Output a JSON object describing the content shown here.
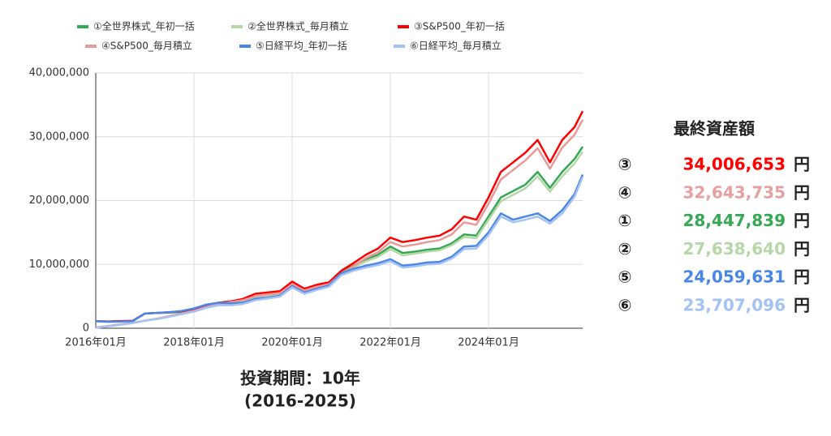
{
  "chart_data": {
    "type": "line",
    "x": [
      "2016-01",
      "2016-04",
      "2016-07",
      "2016-10",
      "2017-01",
      "2017-04",
      "2017-07",
      "2017-10",
      "2018-01",
      "2018-04",
      "2018-07",
      "2018-10",
      "2019-01",
      "2019-04",
      "2019-07",
      "2019-10",
      "2020-01",
      "2020-04",
      "2020-07",
      "2020-10",
      "2021-01",
      "2021-04",
      "2021-07",
      "2021-10",
      "2022-01",
      "2022-04",
      "2022-07",
      "2022-10",
      "2023-01",
      "2023-04",
      "2023-07",
      "2023-10",
      "2024-01",
      "2024-04",
      "2024-07",
      "2024-10",
      "2025-01",
      "2025-04",
      "2025-07",
      "2025-10",
      "2025-12"
    ],
    "xlim": [
      "2016-01",
      "2025-12"
    ],
    "xticks": [
      {
        "value": "2016-01",
        "label": "2016年01月"
      },
      {
        "value": "2018-01",
        "label": "2018年01月"
      },
      {
        "value": "2020-01",
        "label": "2020年01月"
      },
      {
        "value": "2022-01",
        "label": "2022年01月"
      },
      {
        "value": "2024-01",
        "label": "2024年01月"
      }
    ],
    "ylim": [
      0,
      40000000
    ],
    "yticks": [
      0,
      {
        "value": 10000000,
        "label": "10,000,000"
      },
      {
        "value": 20000000,
        "label": "20,000,000"
      },
      {
        "value": 30000000,
        "label": "30,000,000"
      },
      {
        "value": 40000000,
        "label": "40,000,000"
      }
    ],
    "grid": true,
    "x_label": [
      "投資期間：10年",
      "(2016-2025)"
    ],
    "series": [
      {
        "name": "①全世界株式_年初一括",
        "color": "#34a853",
        "values": [
          1100000,
          1050000,
          1100000,
          1150000,
          2300000,
          2400000,
          2450000,
          2550000,
          2950000,
          3500000,
          3900000,
          4000000,
          4300000,
          4900000,
          5100000,
          5300000,
          6800000,
          5800000,
          6400000,
          6800000,
          8800000,
          9800000,
          10800000,
          11500000,
          12800000,
          11800000,
          12000000,
          12300000,
          12500000,
          13300000,
          14700000,
          14500000,
          17500000,
          20500000,
          21500000,
          22500000,
          24500000,
          22000000,
          24500000,
          26500000,
          28447839
        ]
      },
      {
        "name": "②全世界株式_毎月積立",
        "color": "#b6d7a8",
        "values": [
          100000,
          350000,
          600000,
          850000,
          1200000,
          1500000,
          1850000,
          2250000,
          2650000,
          3200000,
          3700000,
          3950000,
          4200000,
          4700000,
          5000000,
          5200000,
          6600000,
          5700000,
          6300000,
          6700000,
          8500000,
          9500000,
          10500000,
          11200000,
          12400000,
          11400000,
          11700000,
          12000000,
          12200000,
          13000000,
          14300000,
          14100000,
          17000000,
          19900000,
          20900000,
          21900000,
          23800000,
          21400000,
          23800000,
          25800000,
          27638640
        ]
      },
      {
        "name": "③S&P500_年初一括",
        "color": "#ff0000",
        "values": [
          1100000,
          1050000,
          1100000,
          1150000,
          2300000,
          2400000,
          2500000,
          2650000,
          3000000,
          3600000,
          4000000,
          4200000,
          4600000,
          5400000,
          5600000,
          5800000,
          7300000,
          6200000,
          6800000,
          7200000,
          9000000,
          10200000,
          11500000,
          12500000,
          14200000,
          13500000,
          13800000,
          14200000,
          14500000,
          15500000,
          17500000,
          17000000,
          20500000,
          24500000,
          26000000,
          27500000,
          29500000,
          26000000,
          29500000,
          31500000,
          34006653
        ]
      },
      {
        "name": "④S&P500_毎月積立",
        "color": "#ea9999",
        "values": [
          100000,
          350000,
          600000,
          850000,
          1200000,
          1500000,
          1900000,
          2300000,
          2700000,
          3300000,
          3800000,
          4100000,
          4400000,
          5000000,
          5300000,
          5500000,
          6900000,
          5900000,
          6500000,
          6900000,
          8600000,
          9700000,
          11000000,
          11900000,
          13500000,
          12800000,
          13100000,
          13500000,
          13800000,
          14700000,
          16600000,
          16200000,
          19500000,
          23300000,
          24800000,
          26300000,
          28200000,
          25000000,
          28300000,
          30300000,
          32643735
        ]
      },
      {
        "name": "⑤日経平均_年初一括",
        "color": "#4a86e8",
        "values": [
          1100000,
          1000000,
          1050000,
          1100000,
          2300000,
          2400000,
          2500000,
          2700000,
          3100000,
          3700000,
          4000000,
          3900000,
          4000000,
          4600000,
          4800000,
          5100000,
          6600000,
          5600000,
          6200000,
          6700000,
          8600000,
          9300000,
          9800000,
          10200000,
          10800000,
          9800000,
          10000000,
          10300000,
          10400000,
          11200000,
          12800000,
          12900000,
          15000000,
          18000000,
          17000000,
          17500000,
          18000000,
          16800000,
          18500000,
          21000000,
          24059631
        ]
      },
      {
        "name": "⑥日経平均_毎月積立",
        "color": "#a4c2f4",
        "values": [
          50000,
          300000,
          550000,
          800000,
          1150000,
          1450000,
          1800000,
          2200000,
          2600000,
          3200000,
          3600000,
          3600000,
          3800000,
          4400000,
          4650000,
          4950000,
          6400000,
          5400000,
          6000000,
          6500000,
          8300000,
          9000000,
          9500000,
          9900000,
          10500000,
          9500000,
          9700000,
          10000000,
          10100000,
          10900000,
          12400000,
          12500000,
          14600000,
          17500000,
          16600000,
          17000000,
          17500000,
          16400000,
          18000000,
          20600000,
          23707096
        ]
      }
    ]
  },
  "summary": {
    "title": "最終資産額",
    "unit": "円",
    "rows": [
      {
        "symbol": "③",
        "value": "34,006,653",
        "color": "#ff0000"
      },
      {
        "symbol": "④",
        "value": "32,643,735",
        "color": "#e6a0a0"
      },
      {
        "symbol": "①",
        "value": "28,447,839",
        "color": "#34a853"
      },
      {
        "symbol": "②",
        "value": "27,638,640",
        "color": "#b6d7a8"
      },
      {
        "symbol": "⑤",
        "value": "24,059,631",
        "color": "#4a86e8"
      },
      {
        "symbol": "⑥",
        "value": "23,707,096",
        "color": "#a4c2f4"
      }
    ]
  }
}
